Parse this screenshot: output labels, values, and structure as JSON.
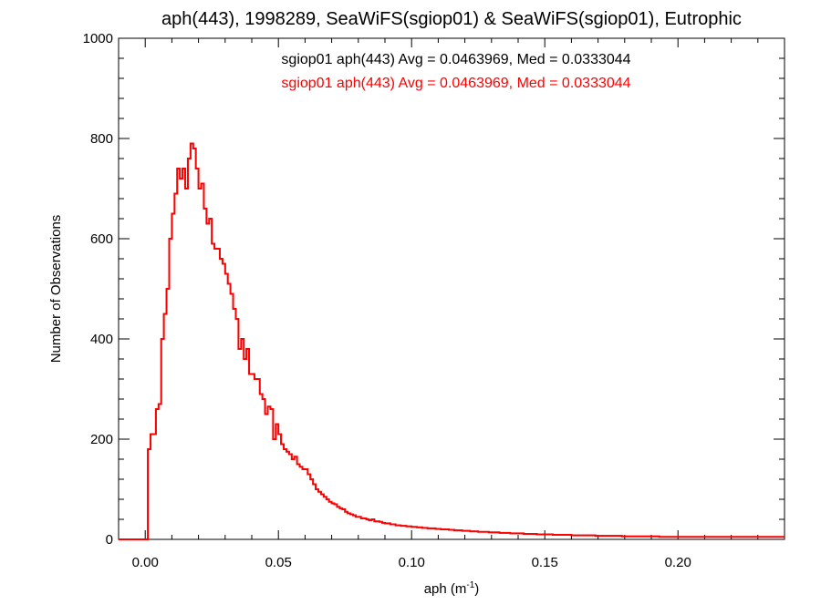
{
  "chart_data": {
    "type": "histogram",
    "title": "aph(443), 1998289, SeaWiFS(sgiop01) & SeaWiFS(sgiop01), Eutrophic",
    "xlabel": {
      "text": "aph (m",
      "sup": "-1",
      "suffix": ")"
    },
    "ylabel": "Number of Observations",
    "xlim": [
      -0.01,
      0.24
    ],
    "ylim": [
      0,
      1000
    ],
    "xticks": [
      0.0,
      0.05,
      0.1,
      0.15,
      0.2
    ],
    "xtick_labels": [
      "0.00",
      "0.05",
      "0.10",
      "0.15",
      "0.20"
    ],
    "yticks": [
      0,
      200,
      400,
      600,
      800,
      1000
    ],
    "ytick_labels": [
      "0",
      "200",
      "400",
      "600",
      "800",
      "1000"
    ],
    "bin_width": 0.001,
    "bin_start": -0.01,
    "annotations": [
      {
        "text": "sgiop01 aph(443) Avg = 0.0463969, Med = 0.0333044",
        "color": "#000000"
      },
      {
        "text": "sgiop01 aph(443) Avg = 0.0463969, Med = 0.0333044",
        "color": "#ff0000"
      }
    ],
    "series": [
      {
        "color": "#000000",
        "values": [
          0,
          0,
          0,
          0,
          0,
          0,
          0,
          0,
          0,
          0,
          0,
          180,
          210,
          210,
          260,
          270,
          400,
          450,
          500,
          600,
          650,
          690,
          740,
          720,
          740,
          700,
          760,
          790,
          780,
          740,
          700,
          710,
          660,
          630,
          640,
          590,
          580,
          580,
          560,
          550,
          530,
          510,
          490,
          460,
          440,
          380,
          400,
          360,
          380,
          330,
          330,
          320,
          320,
          290,
          280,
          250,
          265,
          260,
          200,
          230,
          210,
          190,
          180,
          175,
          170,
          160,
          165,
          150,
          145,
          140,
          140,
          130,
          120,
          110,
          100,
          95,
          90,
          85,
          80,
          75,
          72,
          70,
          65,
          62,
          60,
          55,
          52,
          50,
          48,
          45,
          45,
          42,
          42,
          40,
          38,
          40,
          36,
          36,
          35,
          33,
          32,
          32,
          30,
          30,
          28,
          28,
          27,
          27,
          26,
          26,
          25,
          25,
          24,
          24,
          23,
          23,
          22,
          22,
          22,
          21,
          21,
          20,
          20,
          20,
          19,
          19,
          18,
          18,
          18,
          17,
          17,
          17,
          16,
          16,
          16,
          15,
          15,
          15,
          15,
          14,
          14,
          14,
          14,
          13,
          13,
          13,
          13,
          12,
          12,
          12,
          12,
          12,
          11,
          11,
          11,
          11,
          11,
          10,
          10,
          10,
          10,
          10,
          10,
          9,
          9,
          9,
          9,
          9,
          9,
          9,
          8,
          8,
          8,
          8,
          8,
          8,
          8,
          8,
          8,
          7,
          7,
          7,
          7,
          7,
          7,
          7,
          7,
          7,
          7,
          6,
          6,
          6,
          6,
          6,
          6,
          6,
          6,
          6,
          6,
          6,
          6,
          6,
          6,
          5,
          5,
          5,
          5,
          5,
          5,
          5,
          5,
          5,
          5,
          5,
          5,
          5,
          5,
          5,
          5,
          5,
          5,
          5,
          5,
          5,
          5,
          5,
          5,
          5,
          5,
          5,
          5,
          5,
          5,
          5,
          5,
          5,
          5,
          5,
          5,
          5,
          5,
          5,
          5,
          5,
          5,
          5,
          5,
          5,
          5,
          5,
          5,
          5,
          5,
          5,
          5,
          5,
          5,
          5,
          5,
          5,
          5,
          5,
          5,
          5,
          5,
          5
        ]
      },
      {
        "color": "#ff0000",
        "values": [
          0,
          0,
          0,
          0,
          0,
          0,
          0,
          0,
          0,
          0,
          0,
          180,
          210,
          210,
          260,
          270,
          400,
          450,
          500,
          600,
          650,
          690,
          740,
          720,
          740,
          700,
          760,
          790,
          780,
          740,
          700,
          710,
          660,
          630,
          640,
          590,
          580,
          580,
          560,
          550,
          530,
          510,
          490,
          460,
          440,
          380,
          400,
          360,
          380,
          330,
          330,
          320,
          320,
          290,
          280,
          250,
          265,
          260,
          200,
          230,
          210,
          190,
          180,
          175,
          170,
          160,
          165,
          150,
          145,
          140,
          140,
          130,
          120,
          110,
          100,
          95,
          90,
          85,
          80,
          75,
          72,
          70,
          65,
          62,
          60,
          55,
          52,
          50,
          48,
          45,
          45,
          42,
          42,
          40,
          38,
          40,
          36,
          36,
          35,
          33,
          32,
          32,
          30,
          30,
          28,
          28,
          27,
          27,
          26,
          26,
          25,
          25,
          24,
          24,
          23,
          23,
          22,
          22,
          22,
          21,
          21,
          20,
          20,
          20,
          19,
          19,
          18,
          18,
          18,
          17,
          17,
          17,
          16,
          16,
          16,
          15,
          15,
          15,
          15,
          14,
          14,
          14,
          14,
          13,
          13,
          13,
          13,
          12,
          12,
          12,
          12,
          12,
          11,
          11,
          11,
          11,
          11,
          10,
          10,
          10,
          10,
          10,
          10,
          9,
          9,
          9,
          9,
          9,
          9,
          9,
          8,
          8,
          8,
          8,
          8,
          8,
          8,
          8,
          8,
          7,
          7,
          7,
          7,
          7,
          7,
          7,
          7,
          7,
          7,
          6,
          6,
          6,
          6,
          6,
          6,
          6,
          6,
          6,
          6,
          6,
          6,
          6,
          6,
          5,
          5,
          5,
          5,
          5,
          5,
          5,
          5,
          5,
          5,
          5,
          5,
          5,
          5,
          5,
          5,
          5,
          5,
          5,
          5,
          5,
          5,
          5,
          5,
          5,
          5,
          5,
          5,
          5,
          5,
          5,
          5,
          5,
          5,
          5,
          5,
          5,
          5,
          5,
          5,
          5,
          5,
          5,
          5,
          5,
          5,
          5,
          5,
          5,
          5,
          5,
          5,
          5,
          5,
          5,
          5,
          5,
          5,
          5,
          5,
          5,
          5,
          5
        ]
      }
    ]
  }
}
